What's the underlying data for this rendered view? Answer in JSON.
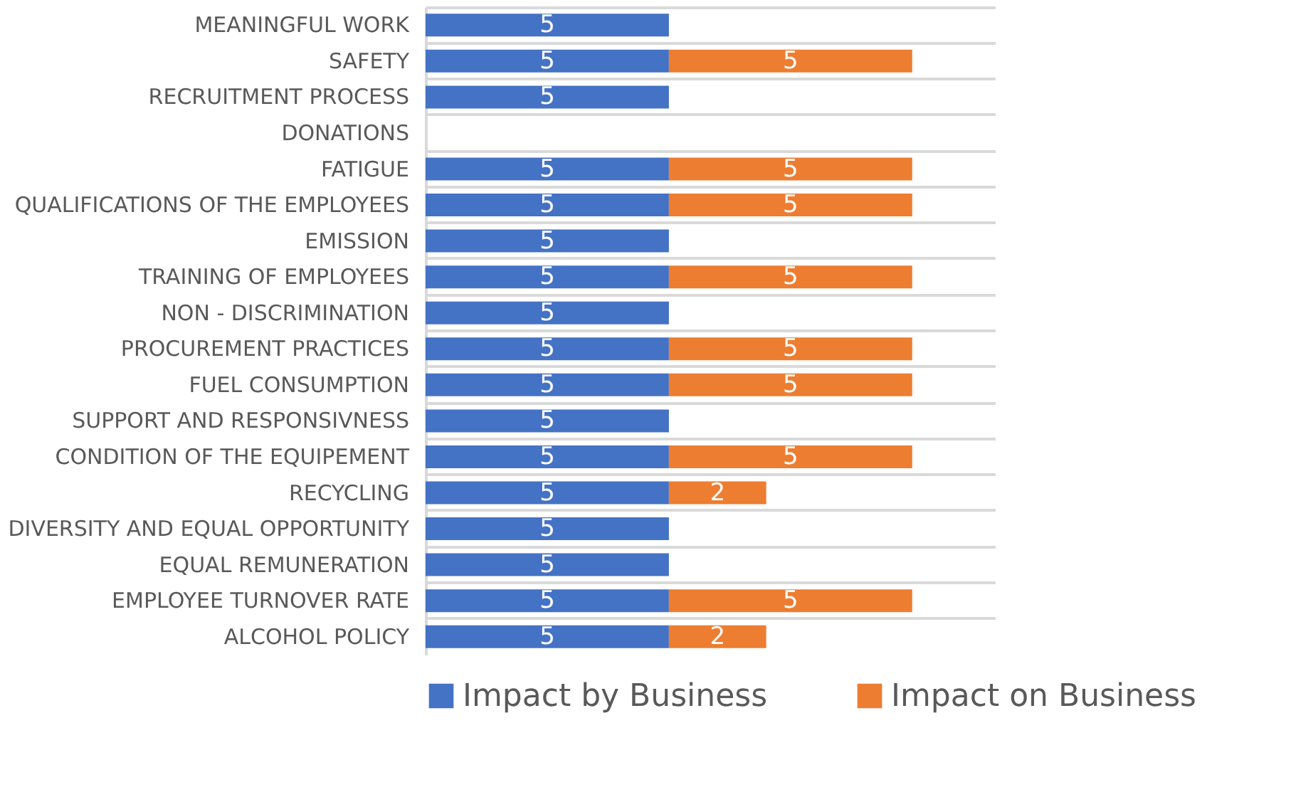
{
  "chart_data": {
    "type": "bar",
    "orientation": "horizontal",
    "stacked": true,
    "categories": [
      "MEANINGFUL WORK",
      "SAFETY",
      "RECRUITMENT PROCESS",
      "DONATIONS",
      "FATIGUE",
      "QUALIFICATIONS OF THE EMPLOYEES",
      "EMISSION",
      "TRAINING OF EMPLOYEES",
      "NON - DISCRIMINATION",
      "PROCUREMENT PRACTICES",
      "FUEL CONSUMPTION",
      "SUPPORT AND RESPONSIVNESS",
      "CONDITION OF THE EQUIPEMENT",
      "RECYCLING",
      "DIVERSITY AND EQUAL OPPORTUNITY",
      "EQUAL REMUNERATION",
      "EMPLOYEE TURNOVER RATE",
      "ALCOHOL POLICY"
    ],
    "series": [
      {
        "name": "Impact by Business",
        "color": "#4472c4",
        "values": [
          5,
          5,
          5,
          null,
          5,
          5,
          5,
          5,
          5,
          5,
          5,
          5,
          5,
          5,
          5,
          5,
          5,
          5
        ]
      },
      {
        "name": "Impact on Business",
        "color": "#ed7d31",
        "values": [
          null,
          5,
          null,
          null,
          5,
          5,
          null,
          5,
          null,
          5,
          5,
          null,
          5,
          2,
          null,
          null,
          5,
          2
        ]
      }
    ],
    "xlim": [
      0,
      11.7
    ],
    "data_labels": true,
    "tick_labels": "y",
    "grid": "y",
    "legend": "bottom"
  }
}
